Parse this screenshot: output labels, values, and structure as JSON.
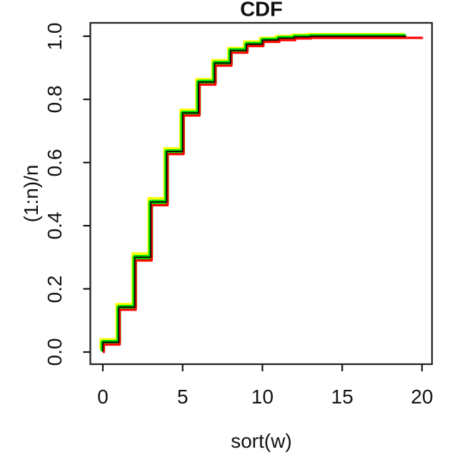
{
  "title": "CDF",
  "x_axis": {
    "label": "sort(w)",
    "tick_labels": [
      "0",
      "5",
      "10",
      "15",
      "20"
    ],
    "tick_values": [
      0,
      5,
      10,
      15,
      20
    ]
  },
  "y_axis": {
    "label": "(1:n)/n",
    "tick_labels": [
      "0.0",
      "0.2",
      "0.4",
      "0.6",
      "0.8",
      "1.0"
    ],
    "tick_values": [
      0,
      0.2,
      0.4,
      0.6,
      0.8,
      1.0
    ]
  },
  "chart_data": {
    "type": "line",
    "subtype": "ecdf-step",
    "title": "CDF",
    "xlabel": "sort(w)",
    "ylabel": "(1:n)/n",
    "xlim": [
      0,
      20
    ],
    "ylim": [
      0,
      1
    ],
    "grid": false,
    "legend": false,
    "frame": "box",
    "step_x": [
      0,
      1,
      2,
      3,
      4,
      5,
      6,
      7,
      8,
      9,
      10,
      11,
      12,
      13
    ],
    "series": [
      {
        "name": "ecdf-yellow",
        "color": "#FFFF00",
        "x_end": 19,
        "values": [
          0.033,
          0.145,
          0.305,
          0.48,
          0.638,
          0.76,
          0.857,
          0.917,
          0.956,
          0.976,
          0.988,
          0.994,
          0.998,
          1.0
        ]
      },
      {
        "name": "ecdf-green",
        "color": "#00E000",
        "x_end": 19,
        "values": [
          0.031,
          0.142,
          0.3,
          0.475,
          0.635,
          0.757,
          0.855,
          0.915,
          0.955,
          0.975,
          0.988,
          0.994,
          0.998,
          1.0
        ]
      },
      {
        "name": "ecdf-red",
        "color": "#FF0000",
        "x_end": 20,
        "values": [
          0.029,
          0.139,
          0.295,
          0.47,
          0.632,
          0.754,
          0.852,
          0.912,
          0.953,
          0.974,
          0.987,
          0.993,
          0.998,
          1.0
        ]
      },
      {
        "name": "ecdf-black",
        "color": "#000000",
        "x_end": 19,
        "values": [
          0.031,
          0.142,
          0.3,
          0.475,
          0.635,
          0.757,
          0.855,
          0.915,
          0.955,
          0.975,
          0.988,
          0.994,
          0.998,
          1.0
        ]
      }
    ]
  }
}
